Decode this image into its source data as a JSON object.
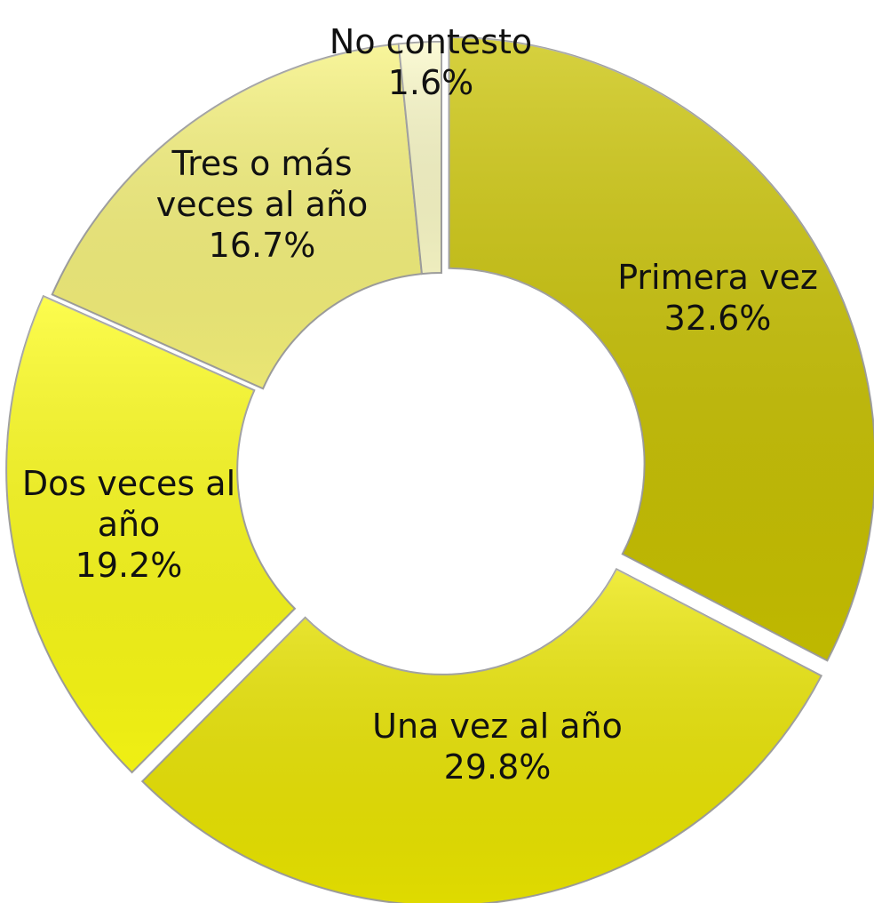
{
  "chart_data": {
    "type": "donut",
    "categories": [
      "Primera vez",
      "Una vez al año",
      "Dos veces al año",
      "Tres o más veces al año",
      "No contesto"
    ],
    "values": [
      32.6,
      29.8,
      19.2,
      16.7,
      1.6
    ],
    "value_labels": [
      "32.6%",
      "29.8%",
      "19.2%",
      "16.7%",
      "1.6%"
    ],
    "colors": [
      "#c9c200",
      "#ebe600",
      "#fcfc14",
      "#f6f27a",
      "#fbfac8"
    ]
  }
}
